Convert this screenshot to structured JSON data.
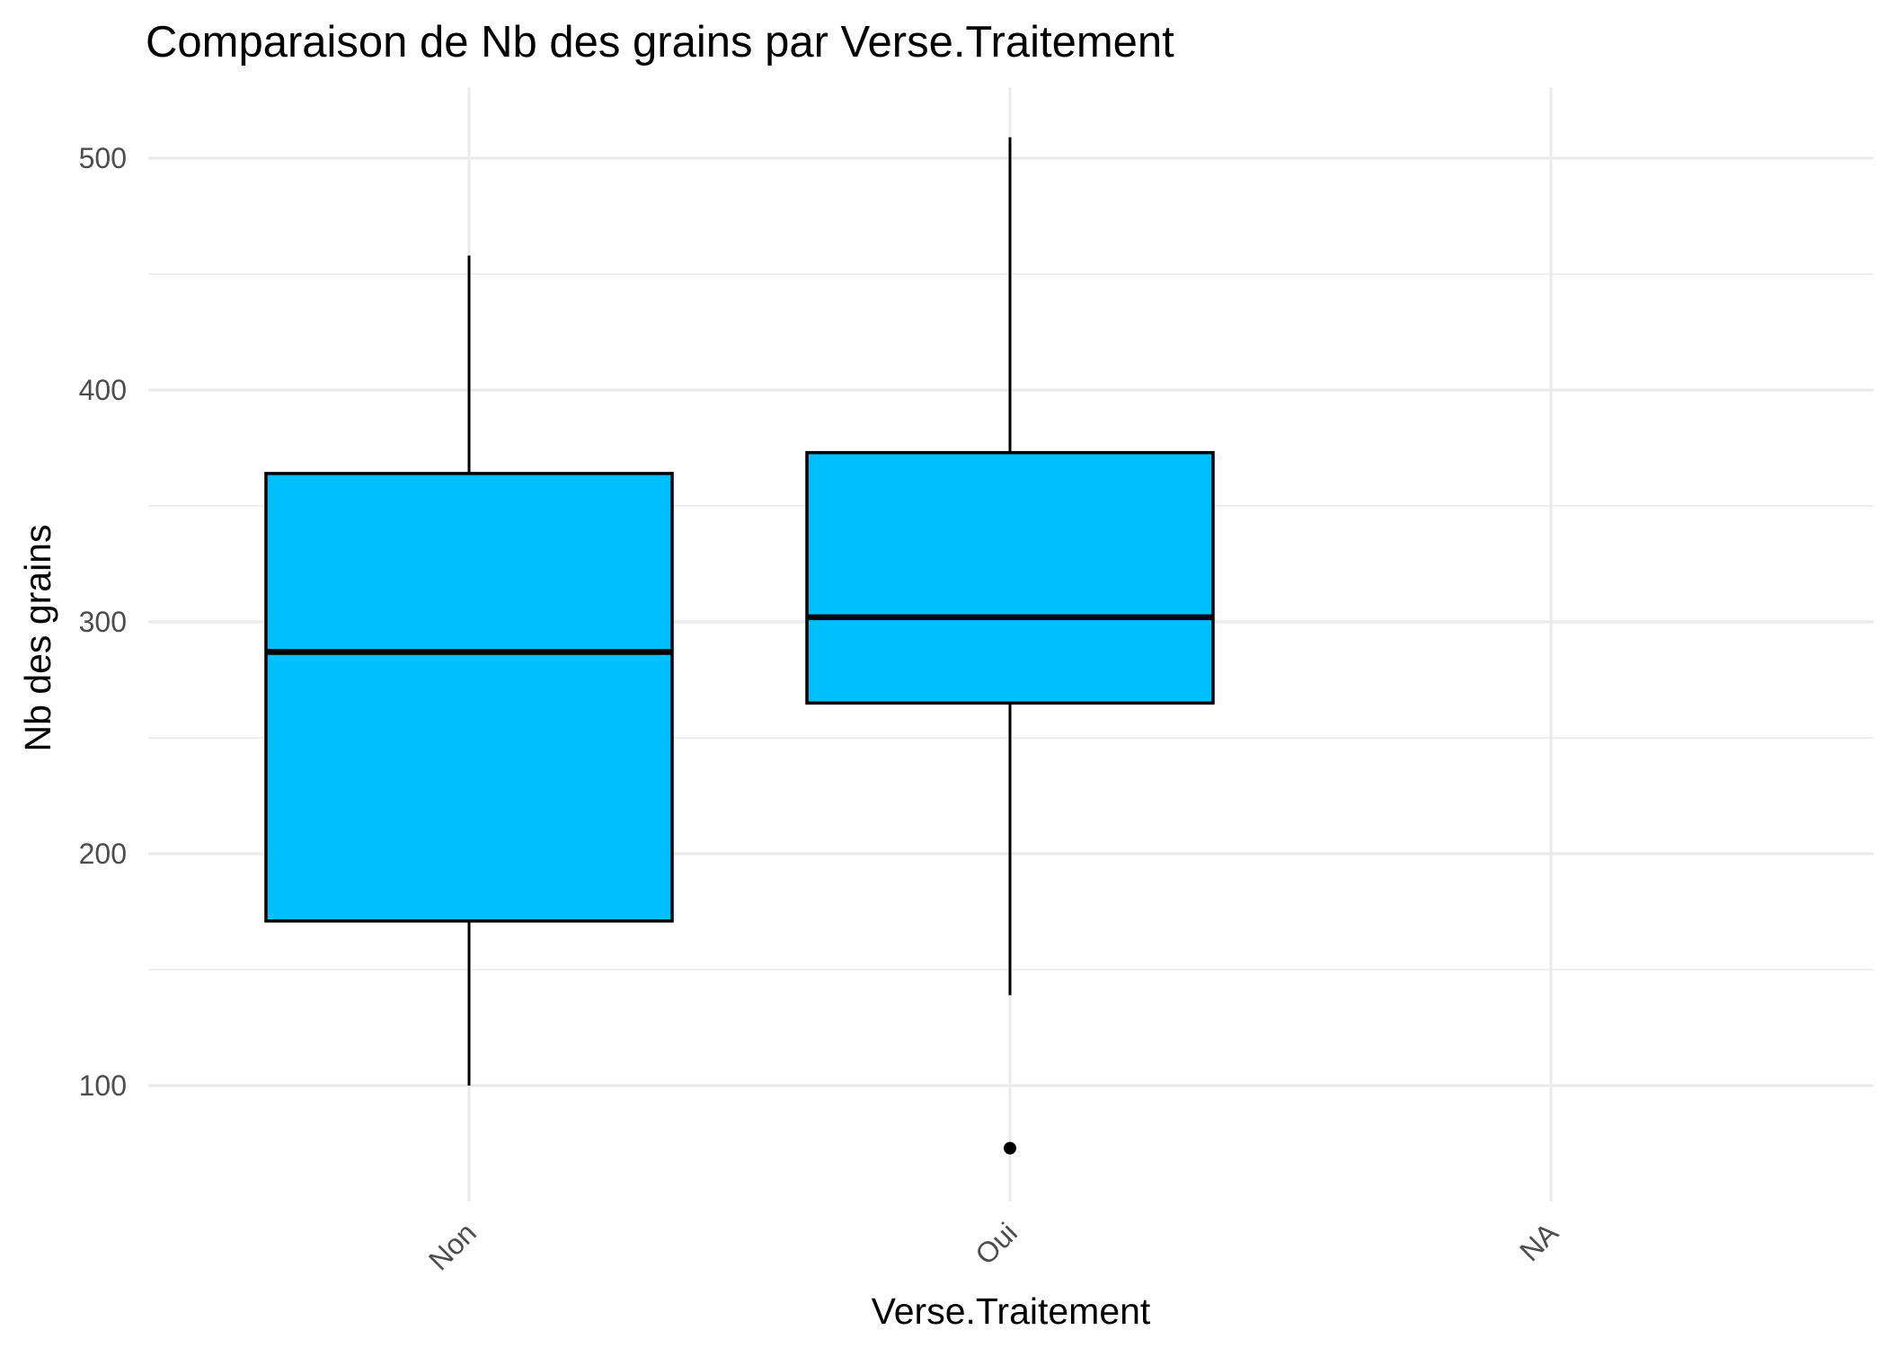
{
  "chart_data": {
    "type": "boxplot",
    "title": "Comparaison de Nb des grains par Verse.Traitement",
    "xlabel": "Verse.Traitement",
    "ylabel": "Nb des grains",
    "categories": [
      "Non",
      "Oui",
      "NA"
    ],
    "ylim": [
      47,
      531
    ],
    "y_ticks": [
      100,
      200,
      300,
      400,
      500
    ],
    "y_minor_ticks": [
      150,
      250,
      350,
      450
    ],
    "grid": true,
    "legend": "none",
    "box_color": "#00bfff",
    "boxes": [
      {
        "category": "Non",
        "min": 100,
        "q1": 171,
        "median": 287,
        "q3": 364,
        "max": 458,
        "outliers": []
      },
      {
        "category": "Oui",
        "min": 139,
        "q1": 265,
        "median": 302,
        "q3": 373,
        "max": 509,
        "outliers": [
          73
        ]
      },
      {
        "category": "NA",
        "min": null,
        "q1": null,
        "median": null,
        "q3": null,
        "max": null,
        "outliers": []
      }
    ]
  }
}
